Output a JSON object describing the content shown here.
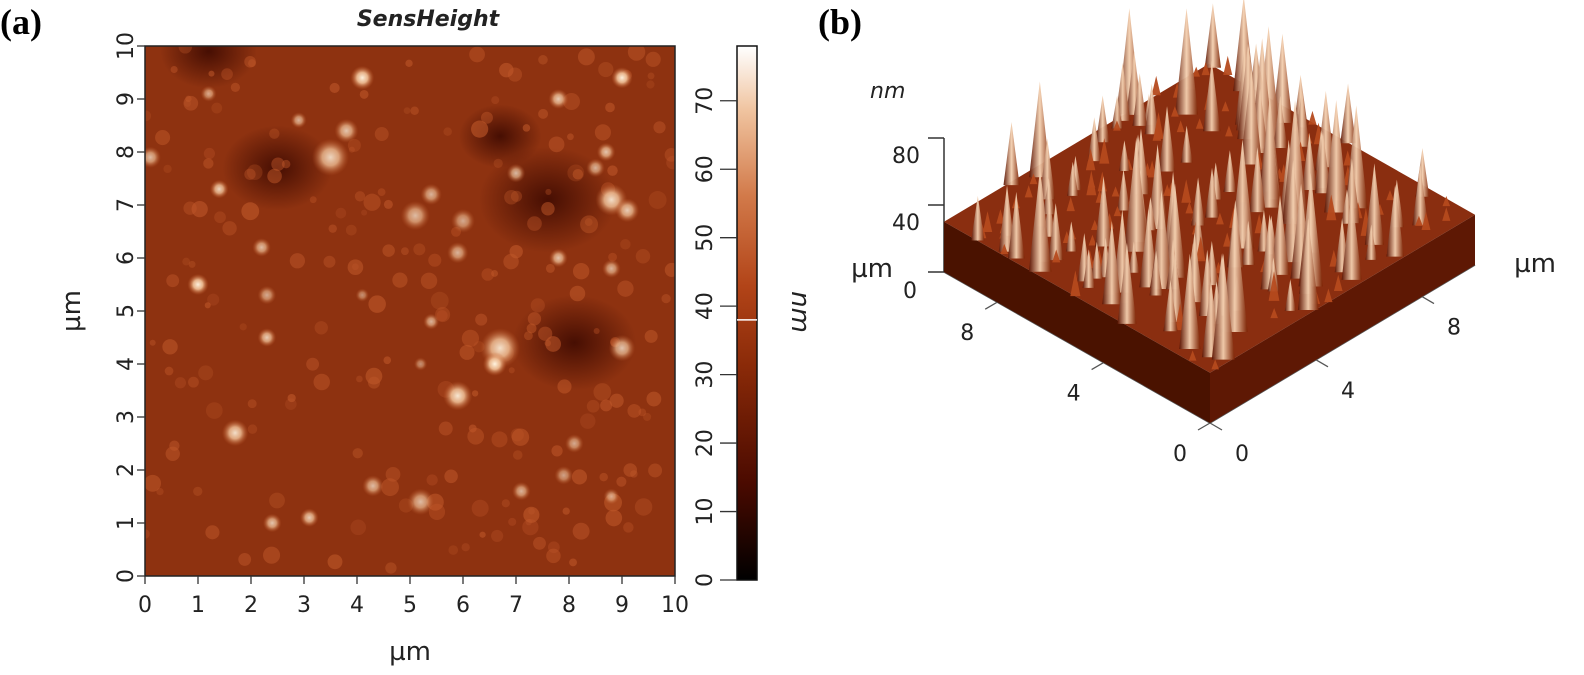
{
  "chart_data": [
    {
      "type": "heatmap",
      "panel_label": "(a)",
      "title": "SensHeight",
      "xlabel": "µm",
      "ylabel": "µm",
      "xlim": [
        0,
        10
      ],
      "ylim": [
        0,
        10
      ],
      "x_ticks": [
        0,
        1,
        2,
        3,
        4,
        5,
        6,
        7,
        8,
        9,
        10
      ],
      "y_ticks": [
        0,
        1,
        2,
        3,
        4,
        5,
        6,
        7,
        8,
        9,
        10
      ],
      "colorbar": {
        "label": "nm",
        "range": [
          0,
          78
        ],
        "ticks": [
          0,
          10,
          20,
          30,
          40,
          50,
          60,
          70
        ],
        "marker": 38,
        "colors": [
          "#000000",
          "#4a0a00",
          "#8a2a08",
          "#b24418",
          "#d27a4a",
          "#f0c4a0",
          "#ffffff"
        ]
      },
      "background_height_nm": 30,
      "features": [
        {
          "x": 4.1,
          "y": 9.4,
          "r": 0.18,
          "h": 74
        },
        {
          "x": 9.0,
          "y": 9.4,
          "r": 0.16,
          "h": 74
        },
        {
          "x": 7.8,
          "y": 9.0,
          "r": 0.15,
          "h": 66
        },
        {
          "x": 1.2,
          "y": 9.1,
          "r": 0.12,
          "h": 56
        },
        {
          "x": 0.1,
          "y": 7.9,
          "r": 0.16,
          "h": 62
        },
        {
          "x": 3.5,
          "y": 7.9,
          "r": 0.28,
          "h": 68
        },
        {
          "x": 3.8,
          "y": 8.4,
          "r": 0.18,
          "h": 64
        },
        {
          "x": 2.9,
          "y": 8.6,
          "r": 0.12,
          "h": 60
        },
        {
          "x": 8.7,
          "y": 8.0,
          "r": 0.14,
          "h": 64
        },
        {
          "x": 8.5,
          "y": 7.7,
          "r": 0.14,
          "h": 60
        },
        {
          "x": 1.4,
          "y": 7.3,
          "r": 0.14,
          "h": 68
        },
        {
          "x": 5.4,
          "y": 7.2,
          "r": 0.16,
          "h": 60
        },
        {
          "x": 7.0,
          "y": 7.6,
          "r": 0.14,
          "h": 62
        },
        {
          "x": 8.8,
          "y": 7.1,
          "r": 0.24,
          "h": 70
        },
        {
          "x": 9.1,
          "y": 6.9,
          "r": 0.18,
          "h": 66
        },
        {
          "x": 5.1,
          "y": 6.8,
          "r": 0.22,
          "h": 62
        },
        {
          "x": 6.0,
          "y": 6.7,
          "r": 0.18,
          "h": 58
        },
        {
          "x": 5.9,
          "y": 6.1,
          "r": 0.16,
          "h": 60
        },
        {
          "x": 2.2,
          "y": 6.2,
          "r": 0.14,
          "h": 62
        },
        {
          "x": 7.8,
          "y": 6.0,
          "r": 0.14,
          "h": 64
        },
        {
          "x": 8.8,
          "y": 5.8,
          "r": 0.14,
          "h": 60
        },
        {
          "x": 1.0,
          "y": 5.5,
          "r": 0.16,
          "h": 74
        },
        {
          "x": 2.3,
          "y": 5.3,
          "r": 0.14,
          "h": 58
        },
        {
          "x": 5.4,
          "y": 4.8,
          "r": 0.12,
          "h": 60
        },
        {
          "x": 2.3,
          "y": 4.5,
          "r": 0.14,
          "h": 66
        },
        {
          "x": 6.7,
          "y": 4.3,
          "r": 0.3,
          "h": 70
        },
        {
          "x": 6.6,
          "y": 4.0,
          "r": 0.18,
          "h": 76
        },
        {
          "x": 9.0,
          "y": 4.3,
          "r": 0.2,
          "h": 64
        },
        {
          "x": 5.9,
          "y": 3.4,
          "r": 0.22,
          "h": 72
        },
        {
          "x": 1.7,
          "y": 2.7,
          "r": 0.2,
          "h": 70
        },
        {
          "x": 8.1,
          "y": 2.5,
          "r": 0.14,
          "h": 58
        },
        {
          "x": 4.3,
          "y": 1.7,
          "r": 0.16,
          "h": 62
        },
        {
          "x": 5.2,
          "y": 1.4,
          "r": 0.2,
          "h": 62
        },
        {
          "x": 7.1,
          "y": 1.6,
          "r": 0.14,
          "h": 60
        },
        {
          "x": 3.1,
          "y": 1.1,
          "r": 0.14,
          "h": 66
        },
        {
          "x": 2.4,
          "y": 1.0,
          "r": 0.14,
          "h": 64
        },
        {
          "x": 7.9,
          "y": 1.9,
          "r": 0.14,
          "h": 56
        },
        {
          "x": 8.8,
          "y": 1.5,
          "r": 0.12,
          "h": 56
        },
        {
          "x": 5.2,
          "y": 4.0,
          "r": 0.1,
          "h": 52
        },
        {
          "x": 4.1,
          "y": 5.3,
          "r": 0.1,
          "h": 52
        }
      ],
      "dark_regions": [
        {
          "x": 7.6,
          "y": 7.1,
          "r": 1.0,
          "h": 12
        },
        {
          "x": 8.1,
          "y": 4.4,
          "r": 0.9,
          "h": 14
        },
        {
          "x": 1.2,
          "y": 9.9,
          "r": 0.7,
          "h": 18
        },
        {
          "x": 2.5,
          "y": 7.7,
          "r": 0.8,
          "h": 20
        },
        {
          "x": 6.7,
          "y": 8.3,
          "r": 0.6,
          "h": 20
        }
      ]
    },
    {
      "type": "surface",
      "panel_label": "(b)",
      "zlabel": "nm",
      "z_ticks": [
        0,
        40,
        80
      ],
      "z_ticks_labeled": [
        40,
        80
      ],
      "z_unit_label": "µm",
      "z_zero_label": "0",
      "left_axis_ticks": [
        0,
        4,
        8
      ],
      "right_axis_ticks": [
        0,
        4,
        8
      ],
      "right_axis_unit": "µm",
      "extent_um": 10,
      "z_range_nm": [
        0,
        80
      ]
    }
  ]
}
